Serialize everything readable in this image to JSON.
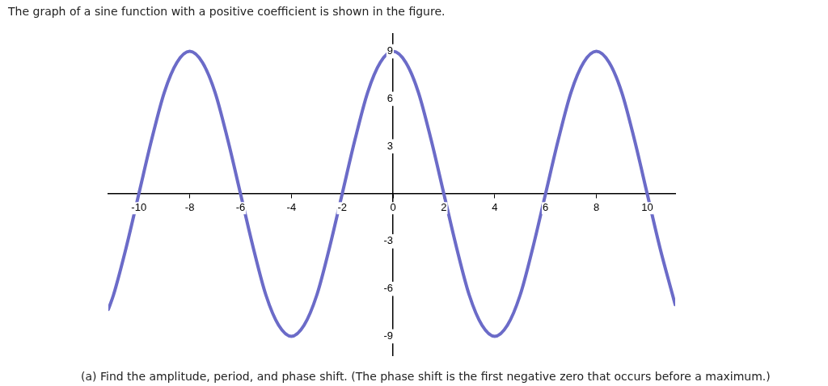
{
  "chart_data": {
    "type": "line",
    "title": "The graph of a sine function with a positive coefficient is shown in the figure.",
    "annotations": [
      "(a) Find the amplitude, period, and phase shift. (The phase shift is the first negative zero that occurs before a maximum.)"
    ],
    "x": [
      -11.2,
      -11,
      -10.5,
      -10,
      -9.5,
      -9,
      -8.5,
      -8,
      -7.5,
      -7,
      -6.5,
      -6,
      -5.5,
      -5,
      -4.5,
      -4,
      -3.5,
      -3,
      -2.5,
      -2,
      -1.5,
      -1,
      -0.5,
      0,
      0.5,
      1,
      1.5,
      2,
      2.5,
      3,
      3.5,
      4,
      4.5,
      5,
      5.5,
      6,
      6.5,
      7,
      7.5,
      8,
      8.5,
      9,
      9.5,
      10,
      10.5,
      11,
      11.1
    ],
    "series": [
      {
        "color": "#6b6bc8",
        "values": [
          -7.3,
          -6.4,
          -3.4,
          0,
          3.4,
          6.4,
          8.3,
          9,
          8.3,
          6.4,
          3.4,
          0,
          -3.4,
          -6.4,
          -8.3,
          -9,
          -8.3,
          -6.4,
          -3.4,
          0,
          3.4,
          6.4,
          8.3,
          9,
          8.3,
          6.4,
          3.4,
          0,
          -3.4,
          -6.4,
          -8.3,
          -9,
          -8.3,
          -6.4,
          -3.4,
          0,
          3.4,
          6.4,
          8.3,
          9,
          8.3,
          6.4,
          3.4,
          0,
          -3.4,
          -6.4,
          -7
        ]
      }
    ],
    "xlim": [
      -11.2,
      11.1
    ],
    "ylim": [
      -10.2,
      10.1
    ],
    "xticks": [
      -10,
      -8,
      -6,
      -4,
      -2,
      0,
      2,
      4,
      6,
      8,
      10
    ],
    "yticks": [
      -9,
      -6,
      -3,
      3,
      6,
      9
    ],
    "grid": false,
    "legend": false,
    "marker": "none",
    "line_style": "solid"
  }
}
